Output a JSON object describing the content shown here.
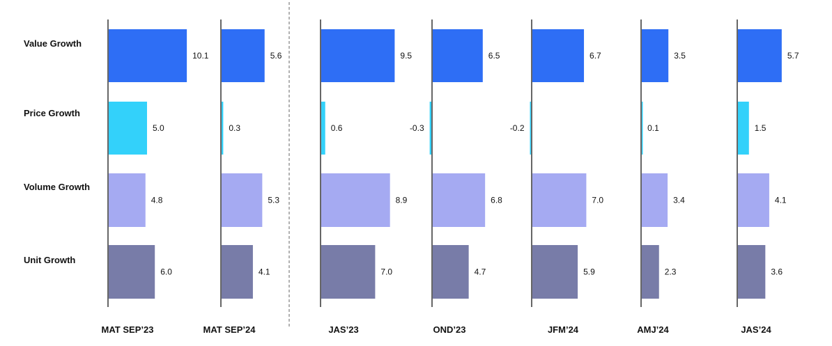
{
  "chart_data": {
    "type": "bar",
    "orientation": "horizontal",
    "series": [
      {
        "name": "Value Growth",
        "color": "#2e6ef5",
        "values": [
          10.1,
          5.6,
          9.5,
          6.5,
          6.7,
          3.5,
          5.7
        ]
      },
      {
        "name": "Price Growth",
        "color": "#33d1fa",
        "values": [
          5.0,
          0.3,
          0.6,
          -0.3,
          -0.2,
          0.1,
          1.5
        ]
      },
      {
        "name": "Volume Growth",
        "color": "#a5aaf2",
        "values": [
          4.8,
          5.3,
          8.9,
          6.8,
          7.0,
          3.4,
          4.1
        ]
      },
      {
        "name": "Unit Growth",
        "color": "#787ca8",
        "values": [
          6.0,
          4.1,
          7.0,
          4.7,
          5.9,
          2.3,
          3.6
        ]
      }
    ],
    "categories": [
      "MAT SEP’23",
      "MAT SEP’24",
      "JAS’23",
      "OND’23",
      "JFM’24",
      "AMJ’24",
      "JAS’24"
    ],
    "value_labels": [
      [
        "10.1",
        "5.6",
        "9.5",
        "6.5",
        "6.7",
        "3.5",
        "5.7"
      ],
      [
        "5.0",
        "0.3",
        "0.6",
        "-0.3",
        "-0.2",
        "0.1",
        "1.5"
      ],
      [
        "4.8",
        "5.3",
        "8.9",
        "6.8",
        "7.0",
        "3.4",
        "4.1"
      ],
      [
        "6.0",
        "4.1",
        "7.0",
        "4.7",
        "5.9",
        "2.3",
        "3.6"
      ]
    ],
    "separator_after_category": 1,
    "grid": false,
    "legend": "none"
  }
}
